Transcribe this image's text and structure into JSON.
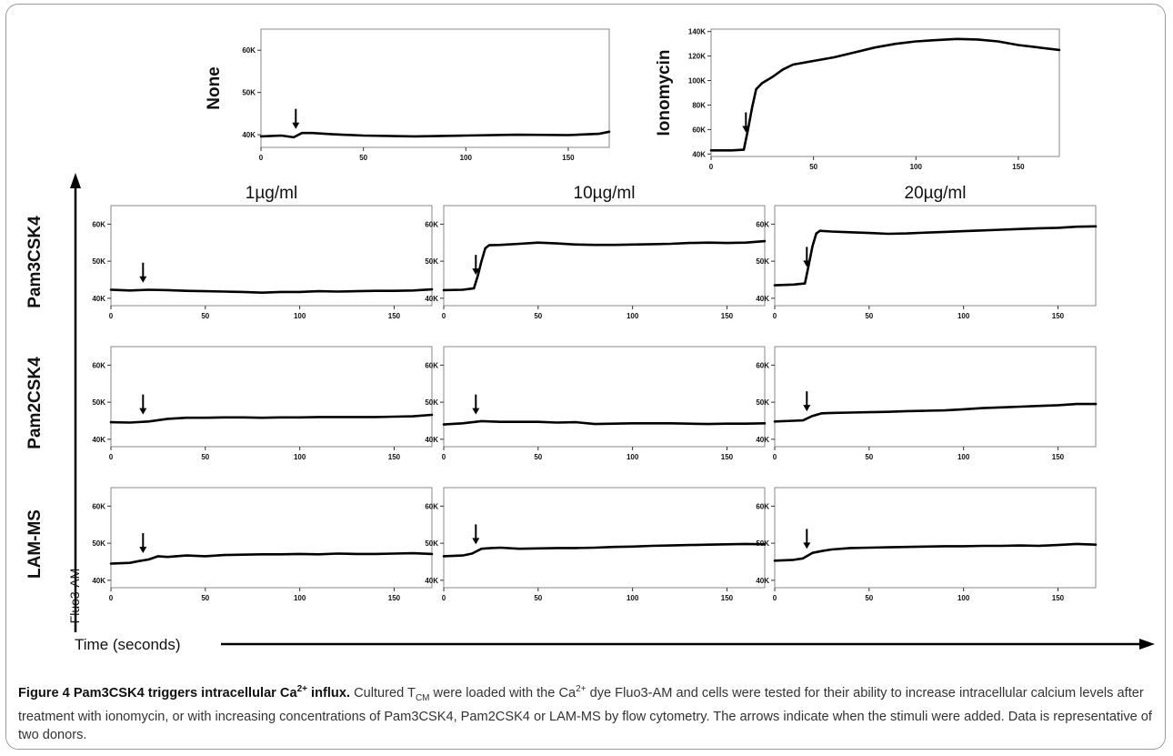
{
  "chart_data": {
    "type": "line",
    "shared": {
      "x_ticks": [
        0,
        50,
        100,
        150
      ],
      "x_range": [
        0,
        170
      ],
      "y_axis_label": "Fluo3-AM",
      "x_axis_label": "Time (seconds)"
    },
    "column_labels": [
      "1µg/ml",
      "10µg/ml",
      "20µg/ml"
    ],
    "row_labels": [
      "Pam3CSK4",
      "Pam2CSK4",
      "LAM-MS"
    ],
    "top_panels": [
      {
        "label": "None",
        "yticks": [
          40000,
          50000,
          60000
        ],
        "ytick_labels": [
          "40K",
          "50K",
          "60K"
        ],
        "ylim": [
          37000,
          65000
        ],
        "arrow_x": 17,
        "x": [
          0,
          10,
          16,
          20,
          25,
          35,
          50,
          75,
          100,
          125,
          150,
          165,
          170
        ],
        "y": [
          39600,
          39800,
          39400,
          40400,
          40400,
          40100,
          39800,
          39600,
          39800,
          40000,
          39900,
          40200,
          40700
        ]
      },
      {
        "label": "Ionomycin",
        "yticks": [
          40000,
          60000,
          80000,
          100000,
          120000,
          140000
        ],
        "ytick_labels": [
          "40K",
          "60K",
          "80K",
          "100K",
          "120K",
          "140K"
        ],
        "ylim": [
          38000,
          142000
        ],
        "arrow_x": 17,
        "x": [
          0,
          10,
          16,
          18,
          20,
          22,
          25,
          30,
          35,
          40,
          50,
          60,
          70,
          80,
          90,
          100,
          110,
          120,
          130,
          140,
          150,
          160,
          170
        ],
        "y": [
          43000,
          43000,
          43500,
          60000,
          78000,
          93000,
          98000,
          103000,
          109000,
          113000,
          116000,
          119000,
          123000,
          127000,
          130000,
          132000,
          133000,
          134000,
          133500,
          132000,
          129000,
          127000,
          125000
        ]
      }
    ],
    "grid_panels": [
      {
        "row": "Pam3CSK4",
        "column": "1µg/ml",
        "ylim": [
          38000,
          65000
        ],
        "yticks": [
          40000,
          50000,
          60000
        ],
        "ytick_labels": [
          "40K",
          "50K",
          "60K"
        ],
        "arrow_x": 17,
        "x": [
          0,
          10,
          20,
          30,
          40,
          50,
          60,
          70,
          80,
          90,
          100,
          110,
          120,
          130,
          140,
          150,
          160,
          170
        ],
        "y": [
          42300,
          42100,
          42300,
          42200,
          42000,
          41900,
          41800,
          41700,
          41500,
          41700,
          41700,
          41900,
          41800,
          41900,
          42000,
          42000,
          42100,
          42400
        ]
      },
      {
        "row": "Pam3CSK4",
        "column": "10µg/ml",
        "ylim": [
          38000,
          65000
        ],
        "yticks": [
          40000,
          50000,
          60000
        ],
        "ytick_labels": [
          "40K",
          "50K",
          "60K"
        ],
        "arrow_x": 17,
        "x": [
          0,
          10,
          16,
          18,
          20,
          22,
          24,
          30,
          40,
          50,
          60,
          70,
          80,
          90,
          100,
          110,
          120,
          130,
          140,
          150,
          160,
          170
        ],
        "y": [
          42200,
          42300,
          42700,
          46000,
          50000,
          53500,
          54300,
          54400,
          54700,
          55000,
          54800,
          54500,
          54400,
          54400,
          54500,
          54600,
          54700,
          54900,
          55000,
          54900,
          55000,
          55400
        ]
      },
      {
        "row": "Pam3CSK4",
        "column": "20µg/ml",
        "ylim": [
          38000,
          65000
        ],
        "yticks": [
          40000,
          50000,
          60000
        ],
        "ytick_labels": [
          "40K",
          "50K",
          "60K"
        ],
        "arrow_x": 17,
        "x": [
          0,
          10,
          16,
          18,
          20,
          22,
          24,
          30,
          40,
          50,
          60,
          70,
          80,
          90,
          100,
          110,
          120,
          130,
          140,
          150,
          160,
          170
        ],
        "y": [
          43500,
          43700,
          44000,
          49000,
          54000,
          57500,
          58200,
          58000,
          57800,
          57600,
          57400,
          57500,
          57700,
          57900,
          58100,
          58300,
          58500,
          58700,
          58900,
          59000,
          59300,
          59400
        ]
      },
      {
        "row": "Pam2CSK4",
        "column": "1µg/ml",
        "ylim": [
          38000,
          65000
        ],
        "yticks": [
          40000,
          50000,
          60000
        ],
        "ytick_labels": [
          "40K",
          "50K",
          "60K"
        ],
        "arrow_x": 17,
        "x": [
          0,
          10,
          20,
          30,
          40,
          50,
          60,
          70,
          80,
          90,
          100,
          110,
          120,
          130,
          140,
          150,
          160,
          170
        ],
        "y": [
          44600,
          44500,
          44800,
          45500,
          45800,
          45800,
          45900,
          45900,
          45800,
          45900,
          45900,
          46000,
          46000,
          46000,
          46000,
          46100,
          46200,
          46600
        ]
      },
      {
        "row": "Pam2CSK4",
        "column": "10µg/ml",
        "ylim": [
          38000,
          65000
        ],
        "yticks": [
          40000,
          50000,
          60000
        ],
        "ytick_labels": [
          "40K",
          "50K",
          "60K"
        ],
        "arrow_x": 17,
        "x": [
          0,
          10,
          20,
          30,
          40,
          50,
          60,
          70,
          80,
          90,
          100,
          110,
          120,
          130,
          140,
          150,
          160,
          170
        ],
        "y": [
          44000,
          44300,
          44900,
          44700,
          44700,
          44700,
          44500,
          44600,
          44100,
          44200,
          44300,
          44300,
          44300,
          44200,
          44100,
          44200,
          44200,
          44300
        ]
      },
      {
        "row": "Pam2CSK4",
        "column": "20µg/ml",
        "ylim": [
          38000,
          65000
        ],
        "yticks": [
          40000,
          50000,
          60000
        ],
        "ytick_labels": [
          "40K",
          "50K",
          "60K"
        ],
        "arrow_x": 17,
        "x": [
          0,
          10,
          15,
          20,
          25,
          30,
          40,
          50,
          60,
          70,
          80,
          90,
          100,
          110,
          120,
          130,
          140,
          150,
          160,
          170
        ],
        "y": [
          44800,
          45000,
          45100,
          46300,
          47000,
          47100,
          47200,
          47300,
          47400,
          47600,
          47700,
          47800,
          48100,
          48400,
          48600,
          48800,
          49000,
          49200,
          49500,
          49500
        ]
      },
      {
        "row": "LAM-MS",
        "column": "1µg/ml",
        "ylim": [
          38000,
          65000
        ],
        "yticks": [
          40000,
          50000,
          60000
        ],
        "ytick_labels": [
          "40K",
          "50K",
          "60K"
        ],
        "arrow_x": 17,
        "x": [
          0,
          10,
          15,
          20,
          25,
          30,
          40,
          50,
          60,
          70,
          80,
          90,
          100,
          110,
          120,
          130,
          140,
          150,
          160,
          170
        ],
        "y": [
          44500,
          44700,
          45200,
          45600,
          46500,
          46300,
          46700,
          46500,
          46800,
          46900,
          47000,
          47000,
          47100,
          47000,
          47200,
          47100,
          47100,
          47200,
          47300,
          47100
        ]
      },
      {
        "row": "LAM-MS",
        "column": "10µg/ml",
        "ylim": [
          38000,
          65000
        ],
        "yticks": [
          40000,
          50000,
          60000
        ],
        "ytick_labels": [
          "40K",
          "50K",
          "60K"
        ],
        "arrow_x": 17,
        "x": [
          0,
          10,
          15,
          20,
          25,
          30,
          40,
          50,
          60,
          70,
          80,
          90,
          100,
          110,
          120,
          130,
          140,
          150,
          160,
          170
        ],
        "y": [
          46500,
          46700,
          47200,
          48500,
          48700,
          48800,
          48500,
          48600,
          48700,
          48700,
          48800,
          49000,
          49100,
          49300,
          49400,
          49500,
          49600,
          49700,
          49800,
          49700
        ]
      },
      {
        "row": "LAM-MS",
        "column": "20µg/ml",
        "ylim": [
          38000,
          65000
        ],
        "yticks": [
          40000,
          50000,
          60000
        ],
        "ytick_labels": [
          "40K",
          "50K",
          "60K"
        ],
        "arrow_x": 17,
        "x": [
          0,
          10,
          15,
          20,
          25,
          30,
          40,
          50,
          60,
          70,
          80,
          90,
          100,
          110,
          120,
          130,
          140,
          150,
          160,
          170
        ],
        "y": [
          45300,
          45500,
          45900,
          47400,
          47900,
          48300,
          48700,
          48800,
          48900,
          49000,
          49100,
          49200,
          49200,
          49300,
          49300,
          49400,
          49300,
          49500,
          49800,
          49600
        ]
      }
    ]
  },
  "caption": {
    "figure_label": "Figure 4",
    "title_pre": " Pam3CSK4 triggers intracellular Ca",
    "title_sup": "2+",
    "title_post": " influx.",
    "body_1": " Cultured T",
    "body_sub": "CM",
    "body_2": " were loaded with the Ca",
    "body_sup": "2+",
    "body_3": " dye Fluo3-AM and cells were tested for their ability to increase intracellular calcium levels after treatment with ionomycin, or with increasing concentrations of Pam3CSK4, Pam2CSK4 or LAM-MS by flow cytometry. The arrows indicate when the stimuli were added. Data is representative of two donors."
  },
  "colors": {
    "line": "#000000",
    "frame": "#9a9a9a",
    "text": "#111111"
  }
}
